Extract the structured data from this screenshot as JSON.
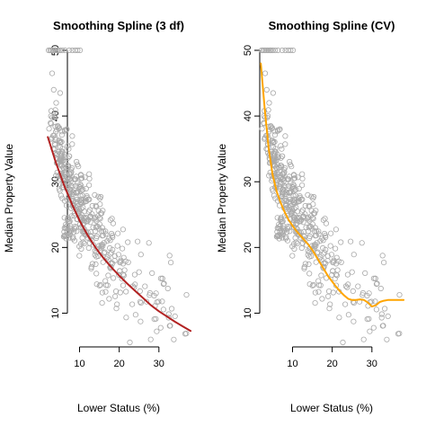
{
  "chart_data": [
    {
      "type": "scatter",
      "title": "Smoothing Spline (3 df)",
      "xlabel": "Lower Status (%)",
      "ylabel": "Median Property Value",
      "xlim": [
        1.73,
        37.97
      ],
      "ylim": [
        5,
        50
      ],
      "xticks": [
        10,
        20,
        30
      ],
      "yticks": [
        10,
        20,
        30,
        40,
        50
      ],
      "grid": false,
      "point_color": "#a9a9a9",
      "fit": {
        "color": "#b22222",
        "x": [
          2,
          4,
          6,
          8,
          10,
          12,
          14,
          16,
          18,
          20,
          22,
          24,
          26,
          28,
          30,
          32,
          34,
          36,
          38
        ],
        "y": [
          36.8,
          33.0,
          29.6,
          26.7,
          24.1,
          21.9,
          20.0,
          18.4,
          17.0,
          15.7,
          14.5,
          13.4,
          12.3,
          11.2,
          10.3,
          9.5,
          8.7,
          8.0,
          7.3
        ]
      }
    },
    {
      "type": "scatter",
      "title": "Smoothing Spline (CV)",
      "xlabel": "Lower Status (%)",
      "ylabel": "Median Property Value",
      "xlim": [
        1.73,
        37.97
      ],
      "ylim": [
        5,
        50
      ],
      "xticks": [
        10,
        20,
        30
      ],
      "yticks": [
        10,
        20,
        30,
        40,
        50
      ],
      "grid": false,
      "point_color": "#a9a9a9",
      "fit": {
        "color": "#ffa500",
        "x": [
          2,
          3,
          4,
          5,
          6,
          7,
          8,
          9,
          10,
          11,
          12,
          13,
          14,
          15,
          16,
          17,
          18,
          19,
          20,
          21,
          22,
          23,
          24,
          25,
          26,
          27,
          28,
          29,
          30,
          31,
          32,
          33,
          34,
          35,
          36,
          37,
          38
        ],
        "y": [
          48.0,
          41.0,
          35.0,
          31.0,
          28.5,
          26.8,
          25.4,
          24.2,
          23.3,
          22.5,
          21.8,
          21.1,
          20.4,
          19.6,
          18.6,
          17.6,
          16.6,
          15.6,
          14.8,
          14.0,
          13.3,
          12.7,
          12.2,
          12.0,
          12.0,
          12.1,
          12.0,
          11.6,
          11.0,
          11.2,
          11.7,
          11.9,
          12.0,
          12.0,
          12.0,
          12.0,
          12.0
        ]
      }
    }
  ]
}
